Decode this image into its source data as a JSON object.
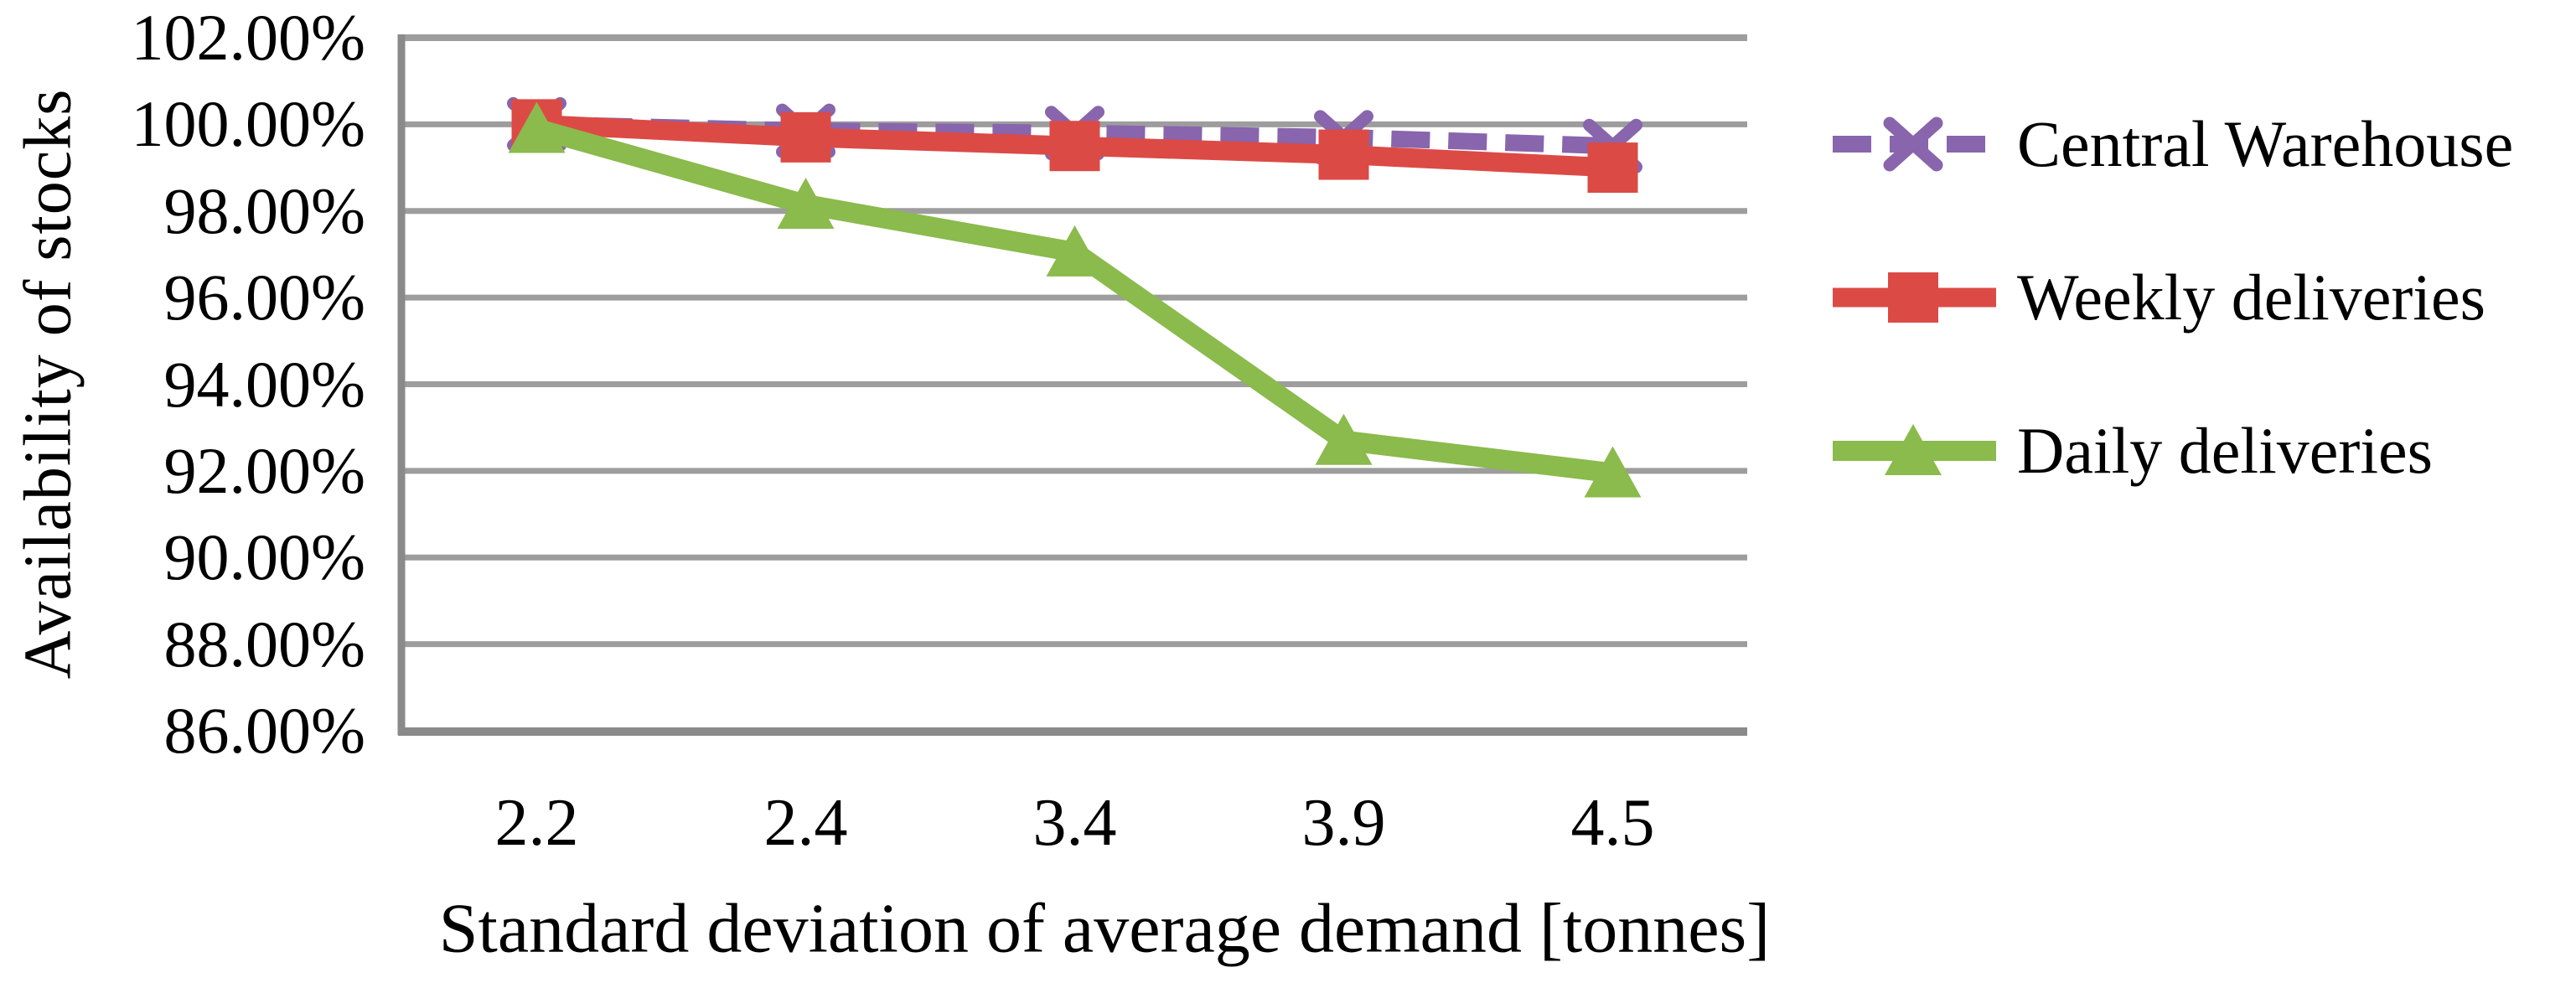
{
  "chart_data": {
    "type": "line",
    "title": "",
    "xlabel": "Standard deviation of average demand [tonnes]",
    "ylabel": "Availability of stocks",
    "categories": [
      "2.2",
      "2.4",
      "3.4",
      "3.9",
      "4.5"
    ],
    "ylim": [
      86,
      102
    ],
    "ytick_step_percent": 2,
    "grid": "horizontal",
    "legend_position": "right",
    "yticks": [
      {
        "value": 102,
        "label": "102.00%"
      },
      {
        "value": 100,
        "label": "100.00%"
      },
      {
        "value": 98,
        "label": "98.00%"
      },
      {
        "value": 96,
        "label": "96.00%"
      },
      {
        "value": 94,
        "label": "94.00%"
      },
      {
        "value": 92,
        "label": "92.00%"
      },
      {
        "value": 90,
        "label": "90.00%"
      },
      {
        "value": 88,
        "label": "88.00%"
      },
      {
        "value": 86,
        "label": "86.00%"
      }
    ],
    "series": [
      {
        "name": "Central Warehouse",
        "color": "#8865AC",
        "marker": "x",
        "line_style": "dashed",
        "values": [
          100.0,
          99.85,
          99.8,
          99.7,
          99.5
        ]
      },
      {
        "name": "Weekly deliveries",
        "color": "#DC4A46",
        "marker": "square",
        "line_style": "solid",
        "values": [
          100.0,
          99.7,
          99.5,
          99.3,
          99.0
        ]
      },
      {
        "name": "Daily deliveries",
        "color": "#8BBA4D",
        "marker": "triangle",
        "line_style": "solid",
        "values": [
          99.9,
          98.15,
          97.05,
          92.7,
          91.95
        ]
      }
    ],
    "axis_color": "#8A8A8A",
    "gridline_color": "#9D9D9D"
  }
}
